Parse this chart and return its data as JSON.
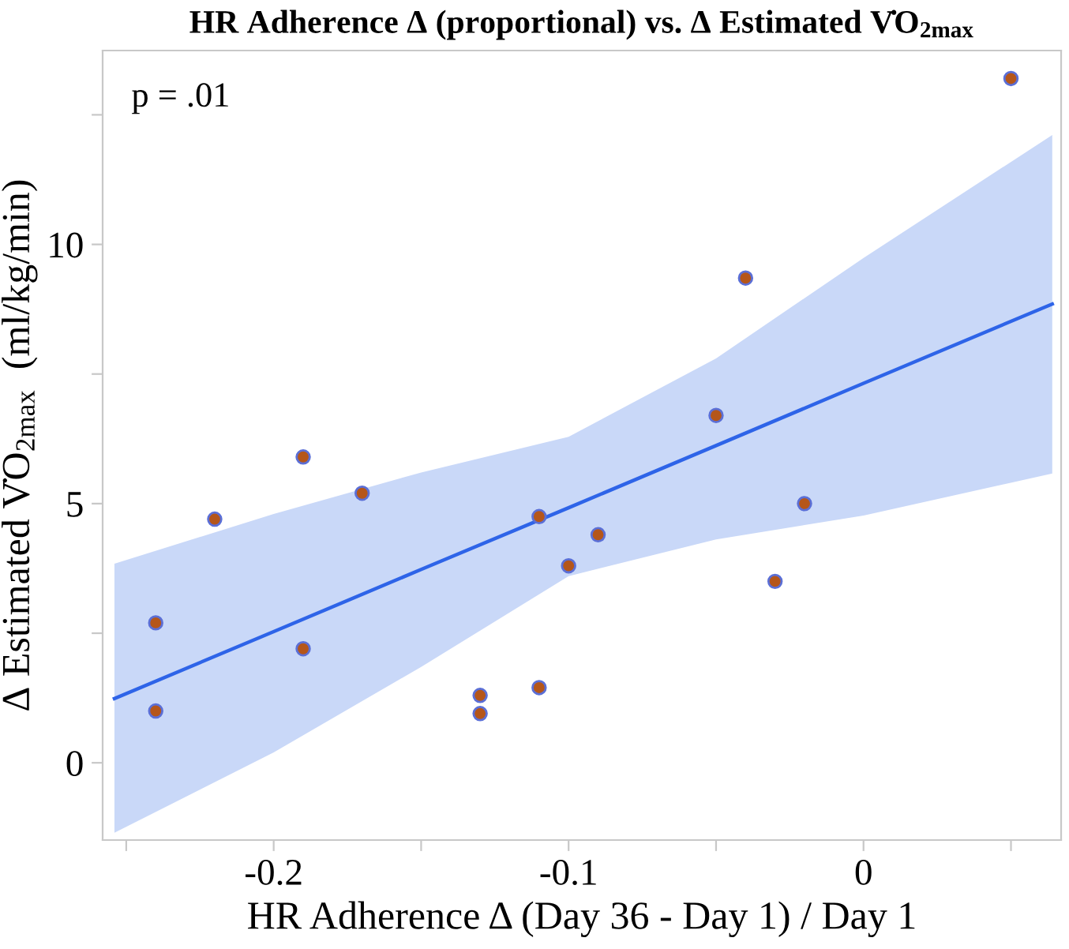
{
  "chart_data": {
    "type": "scatter",
    "title": "HR Adherence Δ (proportional) vs. Δ Estimated V̇O$_{2max}$",
    "xlabel": "HR Adherence Δ (Day 36 - Day 1) / Day 1",
    "ylabel": "Δ Estimated V̇O$_{2max}$  (ml/kg/min)",
    "annotations": [
      "p = .01"
    ],
    "xlim": [
      -0.258,
      0.067
    ],
    "ylim": [
      -1.49,
      13.74
    ],
    "xticks": [
      {
        "value": -0.25,
        "label": null
      },
      -0.2,
      {
        "value": -0.15,
        "label": null
      },
      -0.1,
      {
        "value": -0.05,
        "label": null
      },
      0,
      {
        "value": 0.05,
        "label": null
      }
    ],
    "yticks": [
      0,
      {
        "value": 2.5,
        "label": null
      },
      5,
      {
        "value": 7.5,
        "label": null
      },
      10,
      {
        "value": 12.5,
        "label": null
      }
    ],
    "grid": false,
    "legend": false,
    "series": [
      {
        "type": "line",
        "color": "#2e64e8",
        "line_style": "solid",
        "marker": "none",
        "x": [
          -0.254,
          -0.2,
          -0.15,
          -0.1,
          -0.05,
          0,
          0.064
        ],
        "values": [
          1.24,
          2.53,
          3.73,
          4.92,
          6.12,
          7.32,
          8.85
        ],
        "lower": [
          -1.35,
          0.2,
          1.85,
          3.6,
          4.31,
          4.77,
          5.58
        ],
        "upper": [
          3.84,
          4.8,
          5.6,
          6.29,
          7.8,
          9.74,
          12.11
        ]
      },
      {
        "marker": "circle",
        "color": "#b5561a",
        "x": [
          -0.24,
          -0.24,
          -0.22,
          -0.19,
          -0.19,
          -0.17,
          -0.13,
          -0.13,
          -0.11,
          -0.11,
          -0.1,
          -0.09,
          -0.05,
          -0.04,
          -0.03,
          -0.02,
          0.05
        ],
        "values": [
          2.7,
          1.0,
          4.7,
          5.9,
          2.2,
          5.2,
          1.3,
          0.95,
          4.75,
          1.45,
          3.8,
          4.4,
          6.7,
          9.35,
          3.5,
          5.0,
          13.2
        ]
      }
    ]
  }
}
